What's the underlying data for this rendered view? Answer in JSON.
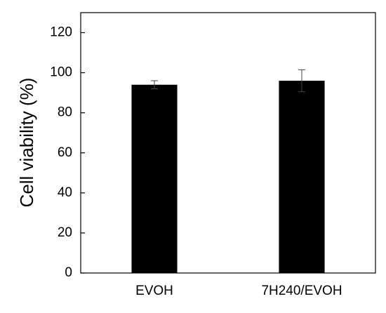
{
  "chart_data": {
    "type": "bar",
    "y_label": "Cell viability (%)",
    "categories": [
      "EVOH",
      "7H240/EVOH"
    ],
    "values": [
      94,
      96
    ],
    "errors": [
      2,
      5.5
    ],
    "color": "#000000",
    "ylim": [
      0,
      130
    ],
    "yticks": [
      0,
      20,
      40,
      60,
      80,
      100,
      120
    ],
    "grid": false
  }
}
